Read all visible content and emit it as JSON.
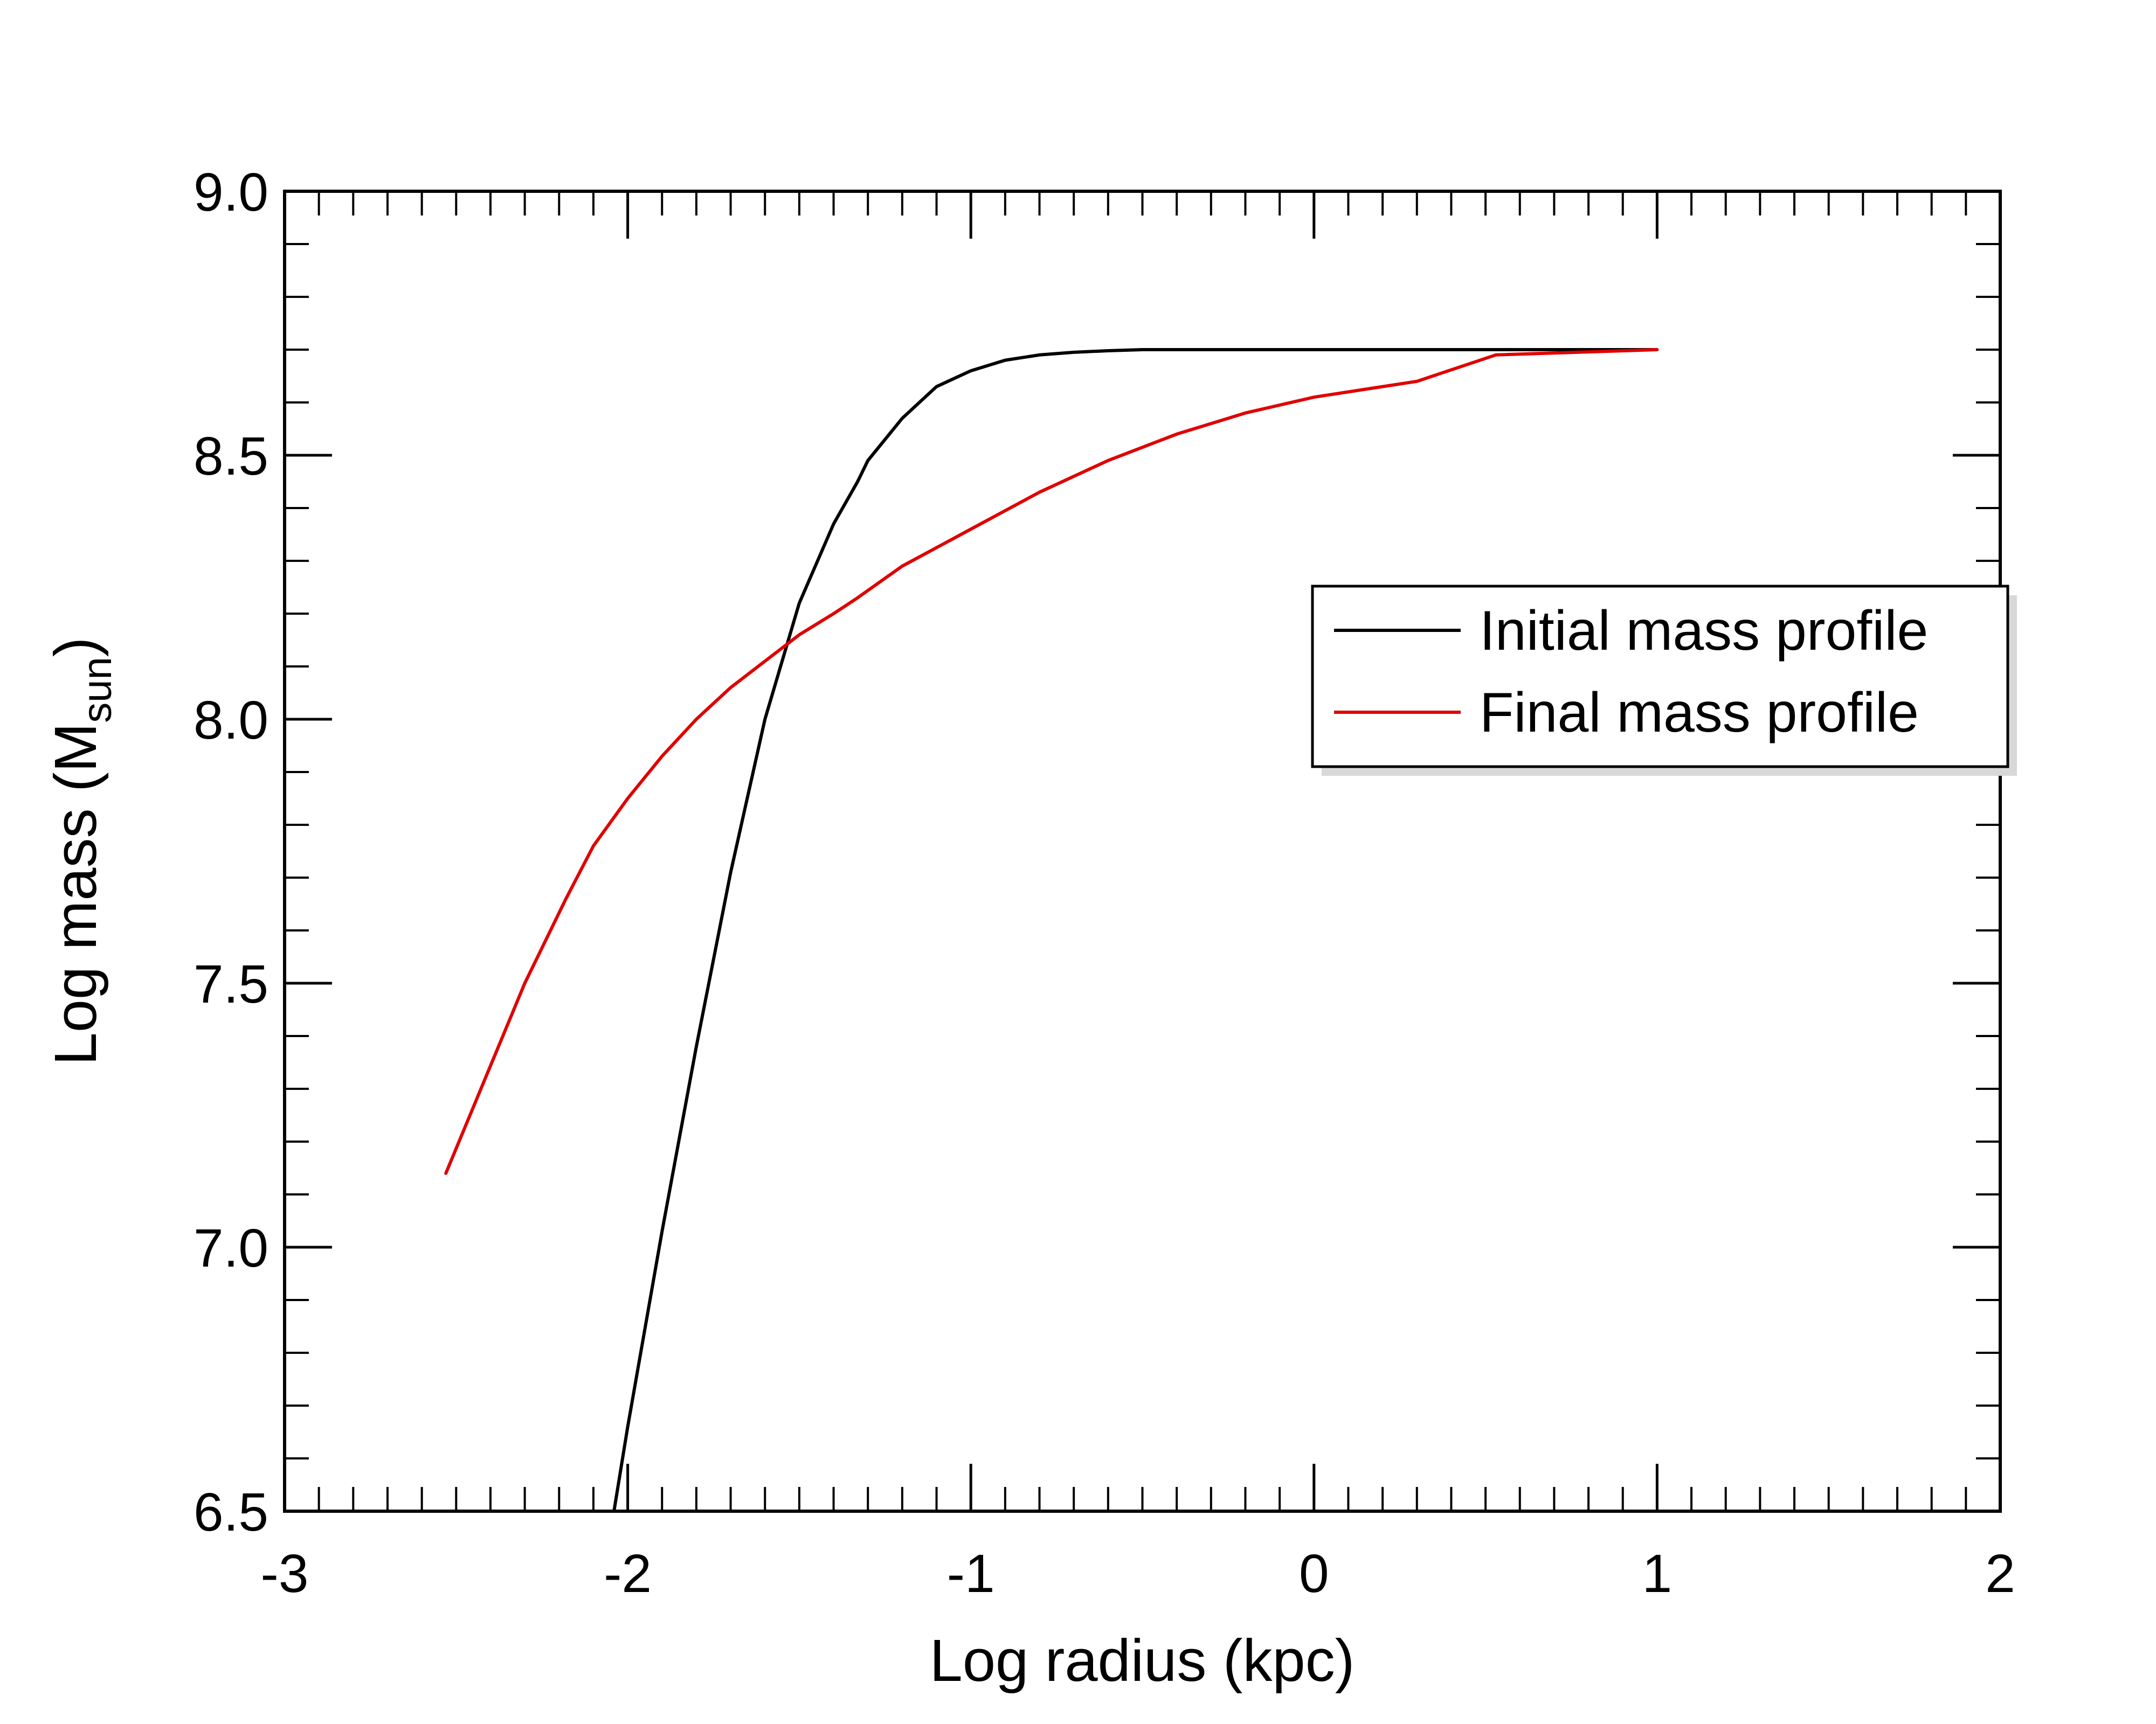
{
  "chart_data": {
    "type": "line",
    "title": "",
    "xlabel": "Log radius (kpc)",
    "ylabel": {
      "prefix": "Log mass (M",
      "subscript": "sun",
      "suffix": ")"
    },
    "xlim": [
      -3,
      2
    ],
    "ylim": [
      6.5,
      9.0
    ],
    "x_ticks": [
      -3,
      -2,
      -1,
      0,
      1,
      2
    ],
    "x_tick_labels": [
      "-3",
      "-2",
      "-1",
      "0",
      "1",
      "2"
    ],
    "x_minor_step": 0.1,
    "y_ticks": [
      6.5,
      7.0,
      7.5,
      8.0,
      8.5,
      9.0
    ],
    "y_tick_labels": [
      "6.5",
      "7.0",
      "7.5",
      "8.0",
      "8.5",
      "9.0"
    ],
    "y_minor_step": 0.1,
    "grid": false,
    "legend_position": "right, upper-middle",
    "series": [
      {
        "name": "Initial mass profile",
        "color": "#000000",
        "x": [
          -2.04,
          -2.0,
          -1.9,
          -1.8,
          -1.7,
          -1.6,
          -1.5,
          -1.4,
          -1.33,
          -1.3,
          -1.2,
          -1.1,
          -1.0,
          -0.9,
          -0.8,
          -0.7,
          -0.6,
          -0.5,
          -0.4,
          -0.2,
          0.0,
          0.5,
          1.0
        ],
        "y": [
          6.5,
          6.66,
          7.03,
          7.38,
          7.71,
          8.0,
          8.22,
          8.37,
          8.45,
          8.49,
          8.57,
          8.63,
          8.66,
          8.68,
          8.69,
          8.695,
          8.698,
          8.7,
          8.7,
          8.7,
          8.7,
          8.7,
          8.7
        ]
      },
      {
        "name": "Final mass profile",
        "color": "#e00000",
        "x": [
          -2.53,
          -2.3,
          -2.18,
          -2.1,
          -2.0,
          -1.9,
          -1.8,
          -1.7,
          -1.6,
          -1.5,
          -1.4,
          -1.33,
          -1.2,
          -1.0,
          -0.8,
          -0.6,
          -0.4,
          -0.2,
          0.0,
          0.3,
          0.53,
          1.0
        ],
        "y": [
          7.14,
          7.5,
          7.66,
          7.76,
          7.85,
          7.93,
          8.0,
          8.06,
          8.11,
          8.16,
          8.2,
          8.23,
          8.29,
          8.36,
          8.43,
          8.49,
          8.54,
          8.58,
          8.61,
          8.64,
          8.69,
          8.7
        ]
      }
    ]
  }
}
